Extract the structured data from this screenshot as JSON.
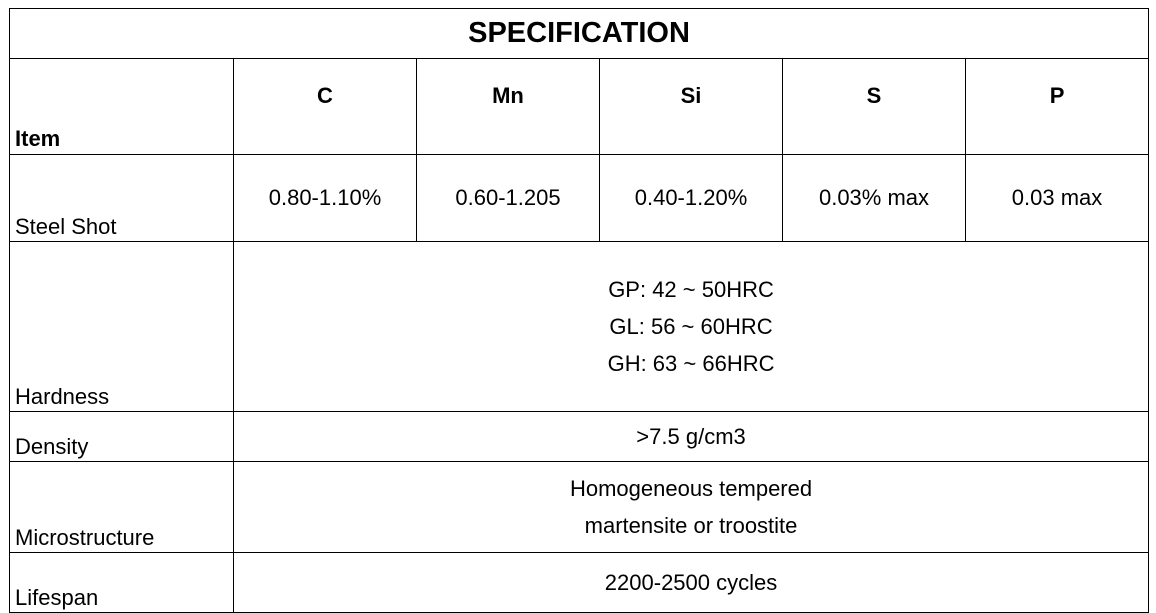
{
  "title": "SPECIFICATION",
  "header": {
    "item_label": "Item",
    "columns": [
      "C",
      "Mn",
      "Si",
      "S",
      "P"
    ]
  },
  "rows": {
    "steel_shot": {
      "label": "Steel Shot",
      "values": [
        "0.80-1.10%",
        "0.60-1.205",
        "0.40-1.20%",
        "0.03% max",
        "0.03 max"
      ]
    },
    "hardness": {
      "label": "Hardness",
      "lines": [
        "GP: 42 ~ 50HRC",
        "GL: 56 ~ 60HRC",
        "GH: 63 ~ 66HRC"
      ]
    },
    "density": {
      "label": "Density",
      "value": ">7.5 g/cm3"
    },
    "microstructure": {
      "label": "Microstructure",
      "lines": [
        "Homogeneous tempered",
        "martensite or troostite"
      ]
    },
    "lifespan": {
      "label": "Lifespan",
      "value": "2200-2500 cycles"
    }
  }
}
